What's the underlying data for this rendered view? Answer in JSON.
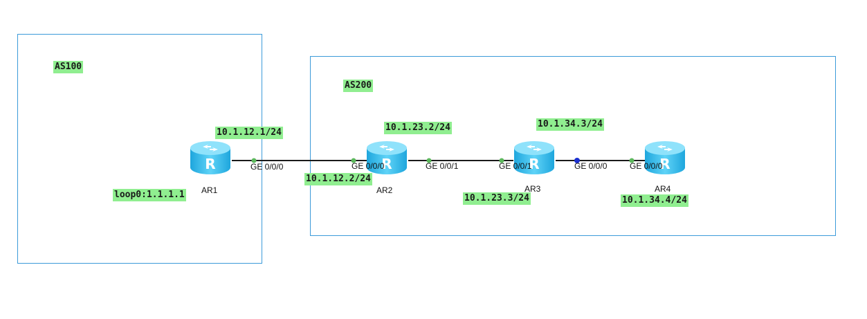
{
  "areas": [
    {
      "id": "as100",
      "label": "AS100"
    },
    {
      "id": "as200",
      "label": "AS200"
    }
  ],
  "routers": [
    {
      "id": "ar1",
      "name": "AR1",
      "icon": "router-icon"
    },
    {
      "id": "ar2",
      "name": "AR2",
      "icon": "router-icon"
    },
    {
      "id": "ar3",
      "name": "AR3",
      "icon": "router-icon"
    },
    {
      "id": "ar4",
      "name": "AR4",
      "icon": "router-icon"
    }
  ],
  "ports": {
    "ar1_ge000": "GE 0/0/0",
    "ar2_ge000": "GE 0/0/0",
    "ar2_ge001": "GE 0/0/1",
    "ar3_ge001": "GE 0/0/1",
    "ar3_ge000": "GE 0/0/0",
    "ar4_ge000": "GE 0/0/0"
  },
  "addresses": {
    "ar1_link": "10.1.12.1/24",
    "ar1_loop": "loop0:1.1.1.1",
    "ar2_link12": "10.1.12.2/24",
    "ar2_link23": "10.1.23.2/24",
    "ar3_link23": "10.1.23.3/24",
    "ar3_link34": "10.1.34.3/24",
    "ar4_link34": "10.1.34.4/24"
  },
  "colors": {
    "box_border": "#3b9ad9",
    "label_bg": "#90ee90",
    "link": "#1a1a1a",
    "port_dot": "#5cb85c",
    "port_dot_active": "#1a2fd0",
    "router_body": "#3cc0ee"
  }
}
